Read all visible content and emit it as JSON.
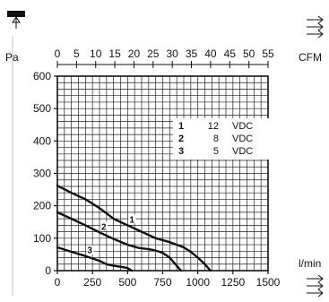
{
  "chart_data": {
    "type": "line",
    "units": {
      "pressure": "Pa",
      "flow_top": "CFM",
      "flow_bottom": "l/min"
    },
    "x_top": {
      "label": "CFM",
      "range": [
        0,
        55
      ],
      "ticks": [
        "0",
        "5",
        "10",
        "15",
        "20",
        "25",
        "30",
        "35",
        "40",
        "45",
        "50",
        "55"
      ]
    },
    "x_bottom": {
      "label": "l/min",
      "range": [
        0,
        1500
      ],
      "ticks": [
        "0",
        "250",
        "500",
        "750",
        "1000",
        "1250",
        "1500"
      ]
    },
    "y": {
      "label": "Pa",
      "range": [
        0,
        600
      ],
      "ticks": [
        "0",
        "100",
        "200",
        "300",
        "400",
        "500",
        "600"
      ]
    },
    "grid": true,
    "legend_position": "top-right",
    "legend": [
      {
        "num": "1",
        "value": "12",
        "unit": "VDC"
      },
      {
        "num": "2",
        "value": "8",
        "unit": "VDC"
      },
      {
        "num": "3",
        "value": "5",
        "unit": "VDC"
      }
    ],
    "series": [
      {
        "name": "1",
        "x": [
          0,
          100,
          200,
          300,
          400,
          500,
          600,
          700,
          800,
          900,
          950,
          1000,
          1050,
          1090
        ],
        "y": [
          262,
          240,
          220,
          193,
          160,
          140,
          120,
          100,
          88,
          72,
          58,
          40,
          20,
          0
        ]
      },
      {
        "name": "2",
        "x": [
          0,
          100,
          200,
          300,
          400,
          500,
          580,
          650,
          700,
          750,
          800,
          840,
          880
        ],
        "y": [
          180,
          160,
          140,
          118,
          98,
          80,
          70,
          66,
          62,
          55,
          40,
          20,
          0
        ]
      },
      {
        "name": "3",
        "x": [
          0,
          100,
          200,
          300,
          350,
          400,
          450,
          500,
          530
        ],
        "y": [
          72,
          58,
          45,
          30,
          20,
          15,
          12,
          8,
          0
        ]
      }
    ]
  }
}
